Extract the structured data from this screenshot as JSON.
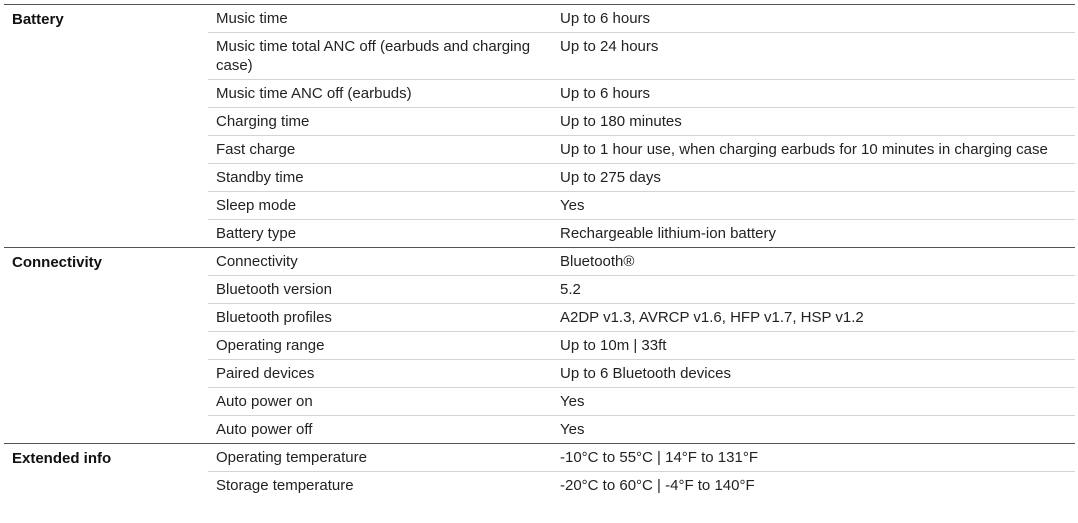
{
  "sections": [
    {
      "title": "Battery",
      "rows": [
        [
          "Music time",
          "Up to 6 hours"
        ],
        [
          "Music time total ANC off (earbuds and charging case)",
          "Up to 24 hours"
        ],
        [
          "Music time ANC off (earbuds)",
          "Up to 6 hours"
        ],
        [
          "Charging time",
          "Up to 180 minutes"
        ],
        [
          "Fast charge",
          "Up to 1 hour use, when charging earbuds for 10 minutes in charging case"
        ],
        [
          "Standby time",
          "Up to 275 days"
        ],
        [
          "Sleep mode",
          "Yes"
        ],
        [
          "Battery type",
          "Rechargeable lithium-ion battery"
        ]
      ]
    },
    {
      "title": "Connectivity",
      "rows": [
        [
          "Connectivity",
          "Bluetooth®"
        ],
        [
          "Bluetooth version",
          "5.2"
        ],
        [
          "Bluetooth profiles",
          "A2DP v1.3, AVRCP v1.6, HFP v1.7, HSP v1.2"
        ],
        [
          "Operating range",
          "Up to 10m | 33ft"
        ],
        [
          "Paired devices",
          "Up to 6 Bluetooth devices"
        ],
        [
          "Auto power on",
          "Yes"
        ],
        [
          "Auto power off",
          "Yes"
        ]
      ]
    },
    {
      "title": "Extended info",
      "rows": [
        [
          "Operating temperature",
          "-10°C to 55°C | 14°F to 131°F"
        ],
        [
          "Storage temperature",
          "-20°C to 60°C | -4°F to 140°F"
        ]
      ]
    }
  ]
}
